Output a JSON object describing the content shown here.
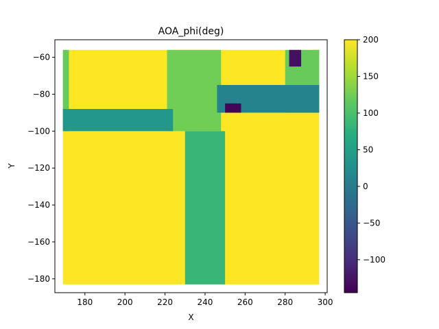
{
  "chart_data": {
    "type": "heatmap",
    "title": "AOA_phi(deg)",
    "xlabel": "X",
    "ylabel": "Y",
    "xlim": [
      165,
      301
    ],
    "ylim": [
      -187.5,
      -50.5
    ],
    "x_ticks": [
      180,
      200,
      220,
      240,
      260,
      280,
      300
    ],
    "y_ticks": [
      -60,
      -80,
      -100,
      -120,
      -140,
      -160,
      -180
    ],
    "colorbar": {
      "colormap": "viridis",
      "range": [
        -145,
        200
      ],
      "ticks": [
        200,
        150,
        100,
        50,
        0,
        -50,
        -100
      ]
    },
    "grid": false,
    "regions": [
      {
        "name": "background",
        "x": [
          169,
          297
        ],
        "y": [
          -183,
          -56
        ],
        "value": 200
      },
      {
        "name": "left-edge-band",
        "x": [
          169,
          172
        ],
        "y": [
          -100,
          -56
        ],
        "value": 120
      },
      {
        "name": "right-edge-band",
        "x": [
          294,
          297
        ],
        "y": [
          -90,
          -56
        ],
        "value": 125
      },
      {
        "name": "vertical-stem-lower",
        "x": [
          230,
          250
        ],
        "y": [
          -183,
          -100
        ],
        "value": 85
      },
      {
        "name": "vertical-stem-upper",
        "x": [
          221,
          248
        ],
        "y": [
          -100,
          -56
        ],
        "value": 125
      },
      {
        "name": "left-arm",
        "x": [
          169,
          224
        ],
        "y": [
          -100,
          -88
        ],
        "value": 40
      },
      {
        "name": "right-arm-top",
        "x": [
          280,
          297
        ],
        "y": [
          -90,
          -56
        ],
        "value": 120
      },
      {
        "name": "right-arm",
        "x": [
          246,
          297
        ],
        "y": [
          -90,
          -75
        ],
        "value": 10
      },
      {
        "name": "purple-spot-1",
        "x": [
          282,
          288
        ],
        "y": [
          -65,
          -56
        ],
        "value": -130
      },
      {
        "name": "purple-spot-2",
        "x": [
          250,
          258
        ],
        "y": [
          -90,
          -85
        ],
        "value": -140
      }
    ]
  }
}
